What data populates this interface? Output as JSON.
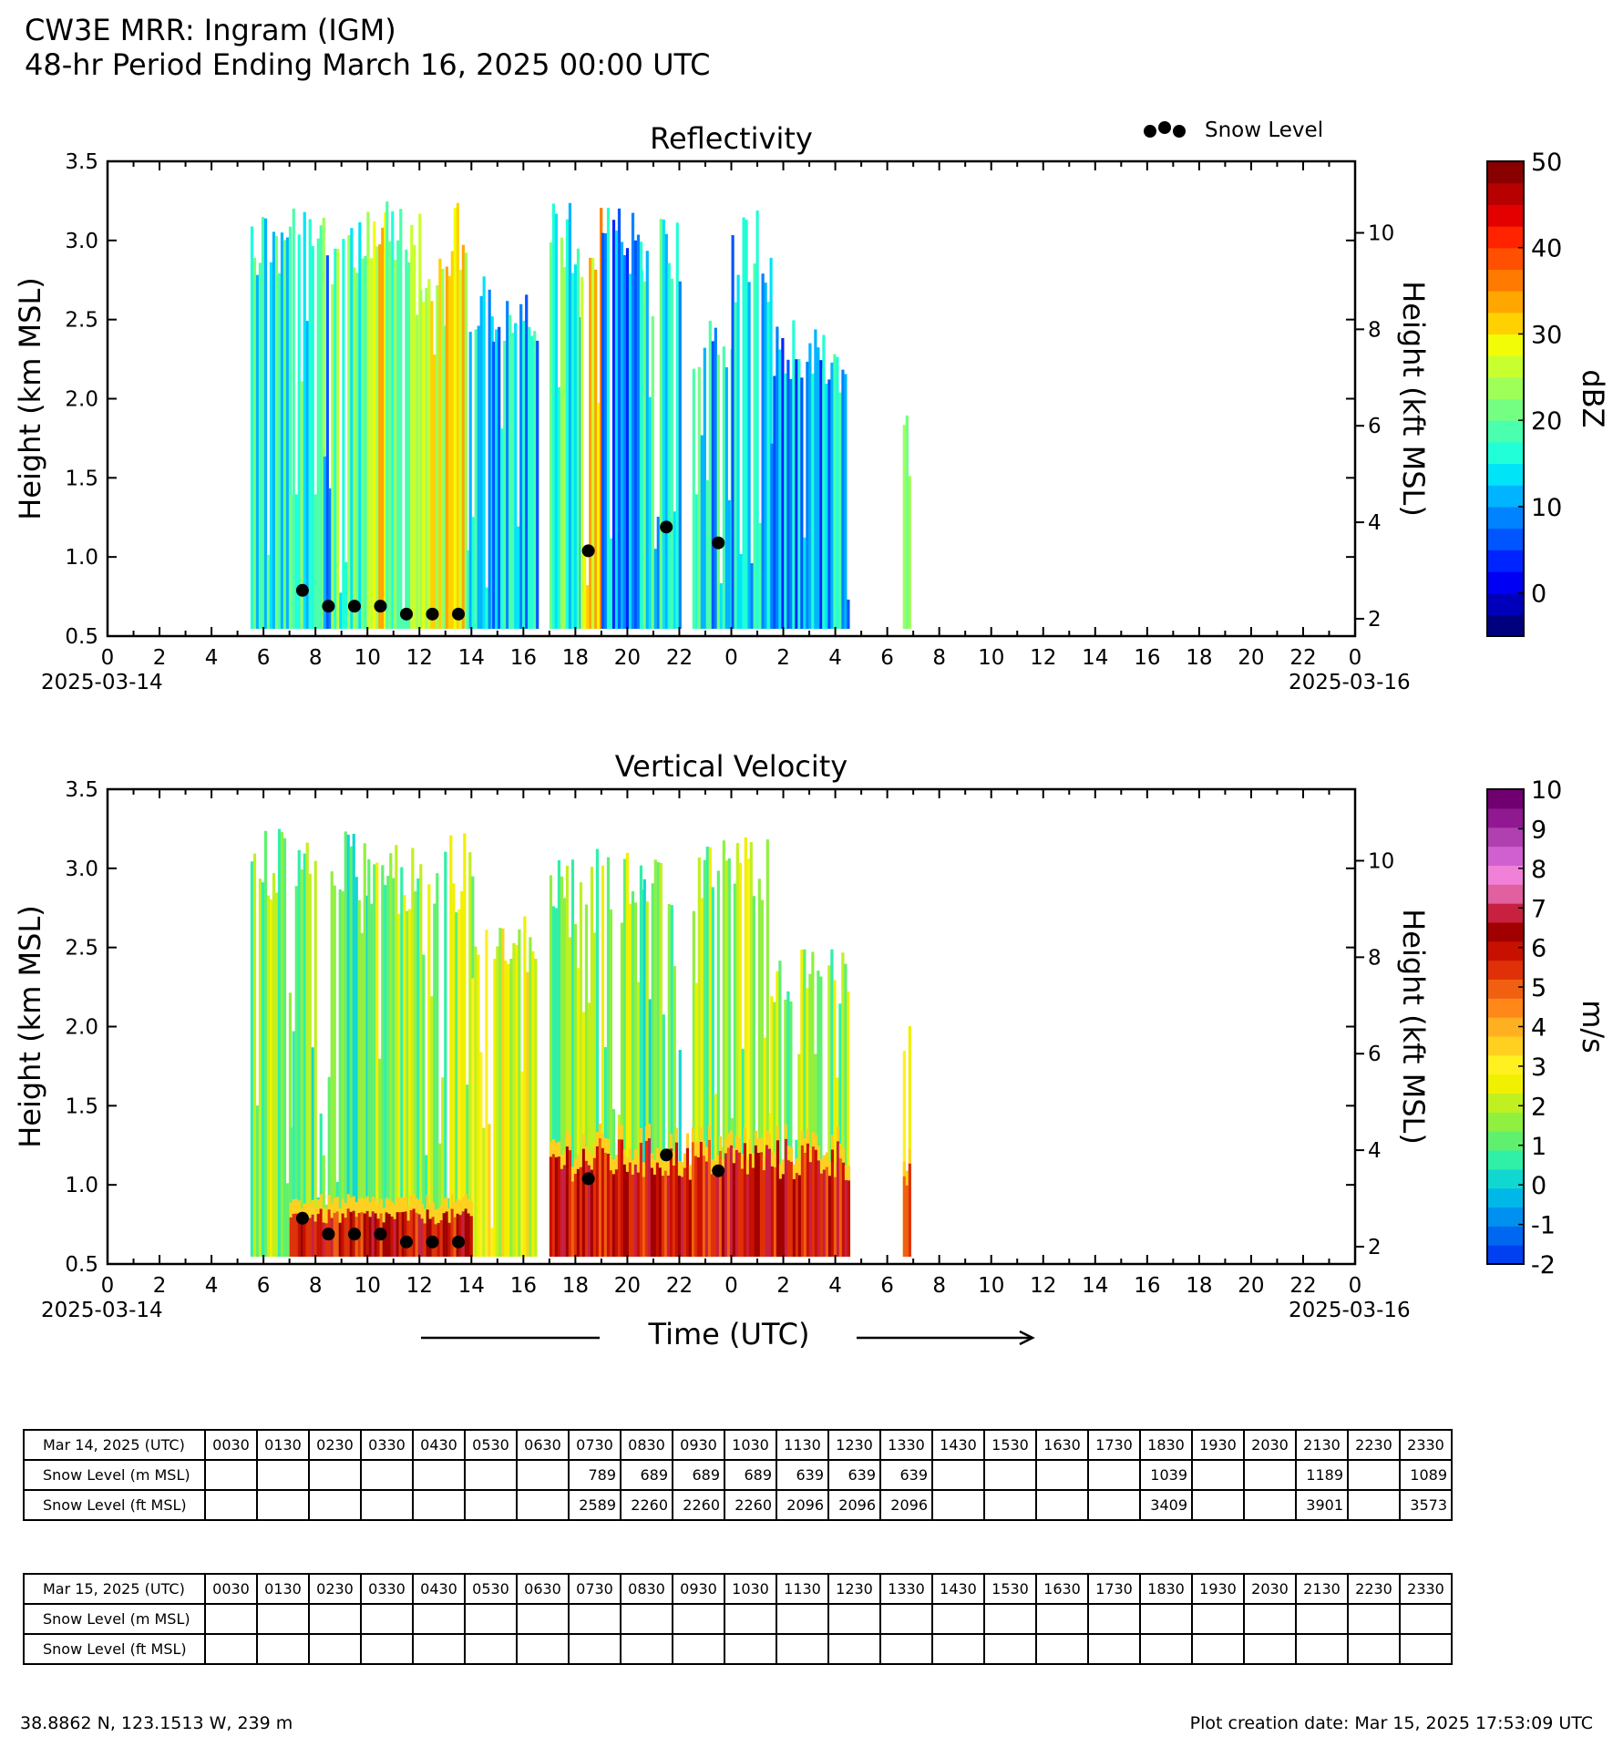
{
  "header": {
    "title": "CW3E MRR: Ingram (IGM)",
    "subtitle": "48-hr Period Ending March 16, 2025 00:00 UTC"
  },
  "legend": {
    "snow_level_label": "Snow Level"
  },
  "x_axis": {
    "tick_labels": [
      "0",
      "2",
      "4",
      "6",
      "8",
      "10",
      "12",
      "14",
      "16",
      "18",
      "20",
      "22",
      "0",
      "2",
      "4",
      "6",
      "8",
      "10",
      "12",
      "14",
      "16",
      "18",
      "20",
      "22",
      "0"
    ],
    "start_date": "2025-03-14",
    "end_date": "2025-03-16",
    "title": "Time (UTC)"
  },
  "chart_data": [
    {
      "type": "heatmap",
      "title": "Reflectivity",
      "ylabel": "Height (km MSL)",
      "ylabel_right": "Height (kft MSL)",
      "ylim": [
        0.5,
        3.5
      ],
      "yticks": [
        "0.5",
        "1.0",
        "1.5",
        "2.0",
        "2.5",
        "3.0",
        "3.5"
      ],
      "yticks_right": [
        "2",
        "4",
        "6",
        "8",
        "10"
      ],
      "xlim": [
        0,
        48
      ],
      "colorbar": {
        "label": "dBZ",
        "min": -5,
        "max": 50,
        "tick_values": [
          0,
          10,
          20,
          30,
          40,
          50
        ],
        "tick_labels": [
          "0",
          "10",
          "20",
          "30",
          "40",
          "50"
        ],
        "colors": [
          "#00007f",
          "#0000bb",
          "#0000f5",
          "#0024ff",
          "#0055ff",
          "#0083ff",
          "#00b4ff",
          "#00e4f8",
          "#20ffd7",
          "#4affad",
          "#74ff83",
          "#9eff59",
          "#c8ff2f",
          "#f1fc06",
          "#ffd100",
          "#ffa600",
          "#ff7a00",
          "#ff4f00",
          "#ff2300",
          "#e50000",
          "#b70000",
          "#890000"
        ]
      },
      "snow_level_km": [
        {
          "t": 7.5,
          "h": 0.789
        },
        {
          "t": 8.5,
          "h": 0.689
        },
        {
          "t": 9.5,
          "h": 0.689
        },
        {
          "t": 10.5,
          "h": 0.689
        },
        {
          "t": 11.5,
          "h": 0.639
        },
        {
          "t": 12.5,
          "h": 0.639
        },
        {
          "t": 13.5,
          "h": 0.639
        },
        {
          "t": 18.5,
          "h": 1.039
        },
        {
          "t": 21.5,
          "h": 1.189
        },
        {
          "t": 23.5,
          "h": 1.089
        }
      ],
      "precip_segments": [
        {
          "t0": 5.5,
          "t1": 7.0,
          "top": 3.25,
          "level": 15
        },
        {
          "t0": 7.0,
          "t1": 8.3,
          "top": 3.25,
          "level": 17
        },
        {
          "t0": 8.3,
          "t1": 8.6,
          "top": 3.25,
          "level": 5
        },
        {
          "t0": 8.6,
          "t1": 10.0,
          "top": 3.25,
          "level": 20
        },
        {
          "t0": 10.0,
          "t1": 10.7,
          "top": 3.25,
          "level": 30
        },
        {
          "t0": 10.7,
          "t1": 12.0,
          "top": 3.25,
          "level": 22
        },
        {
          "t0": 12.0,
          "t1": 13.0,
          "top": 2.9,
          "level": 25
        },
        {
          "t0": 13.0,
          "t1": 13.8,
          "top": 3.25,
          "level": 28
        },
        {
          "t0": 13.8,
          "t1": 14.8,
          "top": 2.8,
          "level": 14
        },
        {
          "t0": 14.8,
          "t1": 16.5,
          "top": 2.7,
          "level": 12
        },
        {
          "t0": 17.0,
          "t1": 18.2,
          "top": 3.25,
          "level": 18
        },
        {
          "t0": 18.2,
          "t1": 19.0,
          "top": 3.25,
          "level": 32
        },
        {
          "t0": 19.0,
          "t1": 20.5,
          "top": 3.25,
          "level": 10
        },
        {
          "t0": 20.5,
          "t1": 22.0,
          "top": 3.25,
          "level": 16
        },
        {
          "t0": 22.5,
          "t1": 24.0,
          "top": 2.5,
          "level": 14
        },
        {
          "t0": 24.0,
          "t1": 25.5,
          "top": 3.2,
          "level": 13
        },
        {
          "t0": 25.5,
          "t1": 27.5,
          "top": 2.5,
          "level": 10
        },
        {
          "t0": 27.5,
          "t1": 28.5,
          "top": 2.3,
          "level": 12
        },
        {
          "t0": 30.6,
          "t1": 30.9,
          "top": 2.05,
          "level": 18
        }
      ]
    },
    {
      "type": "heatmap",
      "title": "Vertical Velocity",
      "ylabel": "Height (km MSL)",
      "ylabel_right": "Height (kft MSL)",
      "ylim": [
        0.5,
        3.5
      ],
      "yticks": [
        "0.5",
        "1.0",
        "1.5",
        "2.0",
        "2.5",
        "3.0",
        "3.5"
      ],
      "yticks_right": [
        "2",
        "4",
        "6",
        "8",
        "10"
      ],
      "xlim": [
        0,
        48
      ],
      "colorbar": {
        "label": "m/s",
        "min": -2,
        "max": 10,
        "tick_values": [
          -2,
          -1,
          0,
          1,
          2,
          3,
          4,
          5,
          6,
          7,
          8,
          9,
          10
        ],
        "tick_labels": [
          "-2",
          "-1",
          "0",
          "1",
          "2",
          "3",
          "4",
          "5",
          "6",
          "7",
          "8",
          "9",
          "10"
        ],
        "colors": [
          "#0040f0",
          "#0068f0",
          "#0090f0",
          "#00b8e8",
          "#10d8d0",
          "#30f0a8",
          "#60f070",
          "#90f040",
          "#c0f020",
          "#f0f000",
          "#fff020",
          "#ffd020",
          "#ffb020",
          "#ff8818",
          "#f06010",
          "#e03008",
          "#c81000",
          "#a00000",
          "#c82040",
          "#e060a0",
          "#f080d8",
          "#d060d0",
          "#b040b0",
          "#901890",
          "#700070"
        ]
      },
      "snow_level_km": [
        {
          "t": 7.5,
          "h": 0.789
        },
        {
          "t": 8.5,
          "h": 0.689
        },
        {
          "t": 9.5,
          "h": 0.689
        },
        {
          "t": 10.5,
          "h": 0.689
        },
        {
          "t": 11.5,
          "h": 0.639
        },
        {
          "t": 12.5,
          "h": 0.639
        },
        {
          "t": 13.5,
          "h": 0.639
        },
        {
          "t": 18.5,
          "h": 1.039
        },
        {
          "t": 21.5,
          "h": 1.189
        },
        {
          "t": 23.5,
          "h": 1.089
        }
      ],
      "precip_segments": [
        {
          "t0": 5.5,
          "t1": 7.0,
          "top": 3.25,
          "level": 1.5
        },
        {
          "t0": 7.0,
          "t1": 10.0,
          "top": 3.25,
          "level": 1.2
        },
        {
          "t0": 10.0,
          "t1": 14.0,
          "top": 3.25,
          "level": 1.8
        },
        {
          "t0": 14.0,
          "t1": 16.5,
          "top": 2.7,
          "level": 2.4
        },
        {
          "t0": 17.0,
          "t1": 20.5,
          "top": 3.25,
          "level": 1.5
        },
        {
          "t0": 20.5,
          "t1": 22.0,
          "top": 3.25,
          "level": 1.3
        },
        {
          "t0": 22.5,
          "t1": 25.5,
          "top": 3.2,
          "level": 1.8
        },
        {
          "t0": 25.5,
          "t1": 28.5,
          "top": 2.5,
          "level": 1.6
        },
        {
          "t0": 30.6,
          "t1": 30.9,
          "top": 2.05,
          "level": 2.5
        }
      ],
      "low_level_maxima": [
        {
          "t0": 7.0,
          "t1": 14.0,
          "top": 0.85,
          "level": 6.0
        },
        {
          "t0": 17.0,
          "t1": 28.5,
          "top": 1.3,
          "level": 6.0
        },
        {
          "t0": 30.6,
          "t1": 30.9,
          "top": 1.2,
          "level": 5.0
        }
      ]
    }
  ],
  "tables": [
    {
      "date_label": "Mar 14, 2025 (UTC)",
      "times": [
        "0030",
        "0130",
        "0230",
        "0330",
        "0430",
        "0530",
        "0630",
        "0730",
        "0830",
        "0930",
        "1030",
        "1130",
        "1230",
        "1330",
        "1430",
        "1530",
        "1630",
        "1730",
        "1830",
        "1930",
        "2030",
        "2130",
        "2230",
        "2330"
      ],
      "rows": [
        {
          "label": "Snow Level (m MSL)",
          "values": [
            "",
            "",
            "",
            "",
            "",
            "",
            "",
            "789",
            "689",
            "689",
            "689",
            "639",
            "639",
            "639",
            "",
            "",
            "",
            "",
            "1039",
            "",
            "",
            "1189",
            "",
            "1089"
          ]
        },
        {
          "label": "Snow Level (ft MSL)",
          "values": [
            "",
            "",
            "",
            "",
            "",
            "",
            "",
            "2589",
            "2260",
            "2260",
            "2260",
            "2096",
            "2096",
            "2096",
            "",
            "",
            "",
            "",
            "3409",
            "",
            "",
            "3901",
            "",
            "3573"
          ]
        }
      ]
    },
    {
      "date_label": "Mar 15, 2025 (UTC)",
      "times": [
        "0030",
        "0130",
        "0230",
        "0330",
        "0430",
        "0530",
        "0630",
        "0730",
        "0830",
        "0930",
        "1030",
        "1130",
        "1230",
        "1330",
        "1430",
        "1530",
        "1630",
        "1730",
        "1830",
        "1930",
        "2030",
        "2130",
        "2230",
        "2330"
      ],
      "rows": [
        {
          "label": "Snow Level (m MSL)",
          "values": [
            "",
            "",
            "",
            "",
            "",
            "",
            "",
            "",
            "",
            "",
            "",
            "",
            "",
            "",
            "",
            "",
            "",
            "",
            "",
            "",
            "",
            "",
            "",
            ""
          ]
        },
        {
          "label": "Snow Level (ft MSL)",
          "values": [
            "",
            "",
            "",
            "",
            "",
            "",
            "",
            "",
            "",
            "",
            "",
            "",
            "",
            "",
            "",
            "",
            "",
            "",
            "",
            "",
            "",
            "",
            "",
            ""
          ]
        }
      ]
    }
  ],
  "footer": {
    "location": "38.8862 N, 123.1513 W, 239 m",
    "creation_date": "Plot creation date: Mar 15, 2025 17:53:09 UTC"
  }
}
